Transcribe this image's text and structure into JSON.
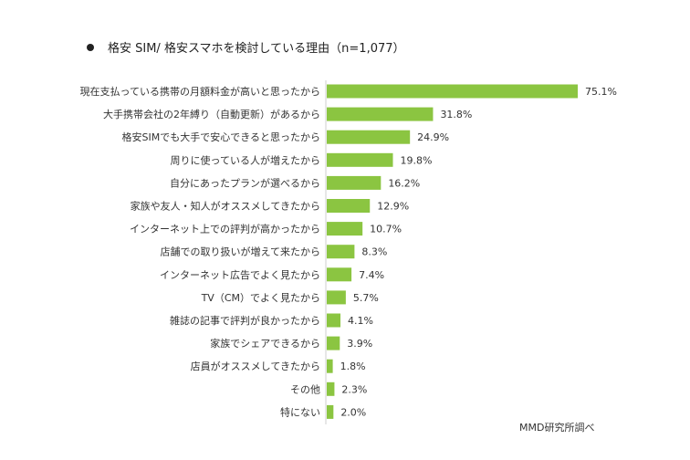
{
  "chart_data": {
    "type": "bar",
    "orientation": "horizontal",
    "title": "格安 SIM/ 格安スマホを検討している理由（n=1,077）",
    "source": "MMD研究所調べ",
    "bar_color": "#8BC541",
    "xlim": [
      0,
      80
    ],
    "categories": [
      "現在支払っている携帯の月額料金が高いと思ったから",
      "大手携帯会社の2年縛り（自動更新）があるから",
      "格安SIMでも大手で安心できると思ったから",
      "周りに使っている人が増えたから",
      "自分にあったプランが選べるから",
      "家族や友人・知人がオススメしてきたから",
      "インターネット上での評判が高かったから",
      "店舗での取り扱いが増えて来たから",
      "インターネット広告でよく見たから",
      "TV（CM）でよく見たから",
      "雑誌の記事で評判が良かったから",
      "家族でシェアできるから",
      "店員がオススメしてきたから",
      "その他",
      "特にない"
    ],
    "values": [
      75.1,
      31.8,
      24.9,
      19.8,
      16.2,
      12.9,
      10.7,
      8.3,
      7.4,
      5.7,
      4.1,
      3.9,
      1.8,
      2.3,
      2.0
    ],
    "value_labels": [
      "75.1%",
      "31.8%",
      "24.9%",
      "19.8%",
      "16.2%",
      "12.9%",
      "10.7%",
      "8.3%",
      "7.4%",
      "5.7%",
      "4.1%",
      "3.9%",
      "1.8%",
      "2.3%",
      "2.0%"
    ]
  }
}
